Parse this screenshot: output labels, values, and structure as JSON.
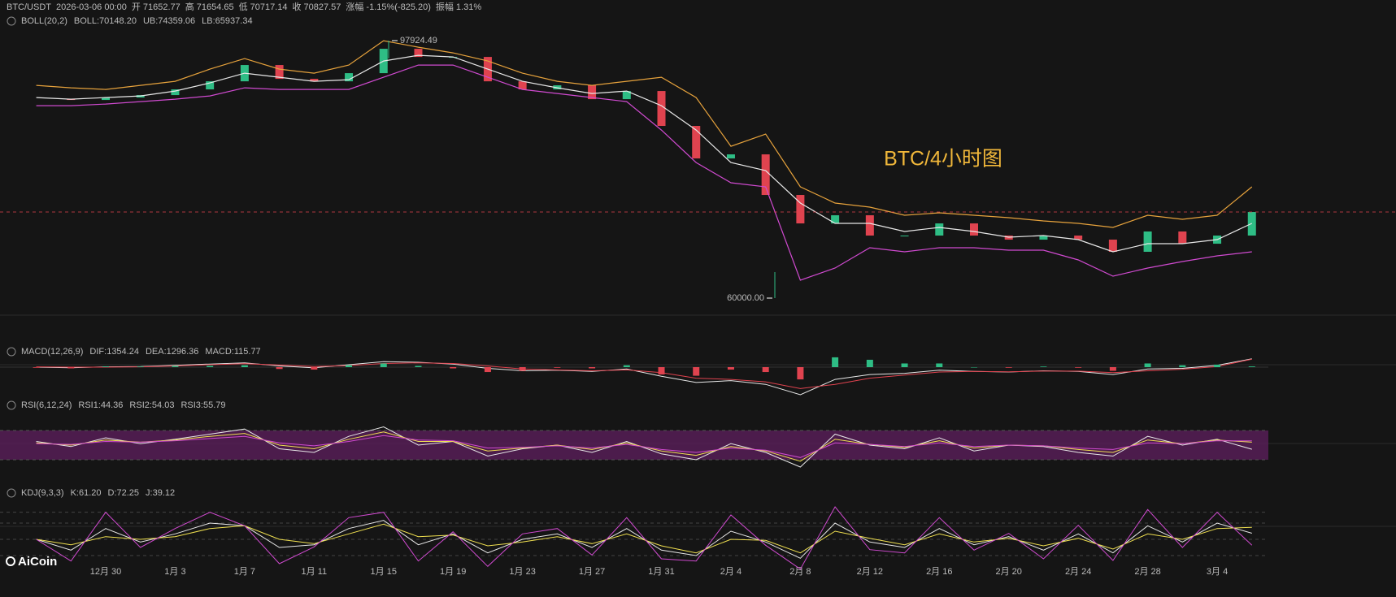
{
  "chart_data": [
    {
      "type": "candlestick",
      "header": {
        "symbol": "BTC/USDT",
        "time": "2026-03-06 00:00",
        "fields": [
          {
            "label": "开",
            "value": "71652.77"
          },
          {
            "label": "高",
            "value": "71654.65"
          },
          {
            "label": "低",
            "value": "70717.14"
          },
          {
            "label": "收",
            "value": "70827.57"
          },
          {
            "label": "涨幅",
            "value": "-1.15%(-825.20)"
          },
          {
            "label": "振幅",
            "value": "1.31%"
          }
        ]
      },
      "indicator": "BOLL(20,2)",
      "annotation": "BTC/4小时图",
      "high": 97924.49,
      "low": {
        "value": 60000,
        "label": "60000.00"
      },
      "categories": [
        null,
        null,
        "12月 30",
        null,
        "1月 3",
        null,
        "1月 7",
        null,
        "1月 11",
        null,
        "1月 15",
        null,
        "1月 19",
        null,
        "1月 23",
        null,
        "1月 27",
        null,
        "1月 31",
        null,
        "2月 4",
        null,
        "2月 8",
        null,
        "2月 12",
        null,
        "2月 16",
        null,
        "2月 20",
        null,
        "2月 24",
        null,
        "2月 28",
        null,
        "3月 4",
        null
      ],
      "values": [
        89302,
        89182,
        89540,
        89900,
        90740,
        91930,
        94330,
        92290,
        91930,
        93130,
        96720,
        95520,
        95520,
        91930,
        90740,
        91340,
        89300,
        90500,
        85360,
        80570,
        81170,
        75190,
        71000,
        72200,
        69210,
        69210,
        71000,
        69210,
        68610,
        69210,
        68610,
        66820,
        69810,
        68010,
        69210,
        72680
      ],
      "up_color": "#2ebd85",
      "down_color": "#e0434f",
      "series": [
        {
          "name": "BOLL:70148.20",
          "color": "#e8e8e8",
          "values": [
            89541,
            89302,
            89541,
            89780,
            90498,
            91694,
            93129,
            92531,
            91933,
            92172,
            94923,
            95760,
            95521,
            93727,
            91933,
            90976,
            90139,
            90498,
            88345,
            84757,
            79973,
            78777,
            73993,
            71003,
            71003,
            69807,
            70405,
            69807,
            68970,
            69209,
            68611,
            66817,
            68013,
            68013,
            68611,
            71003
          ]
        },
        {
          "name": "UB:74359.06",
          "color": "#e6a23c",
          "values": [
            91335,
            90976,
            90737,
            91335,
            91933,
            93727,
            95282,
            93727,
            93129,
            94325,
            97913,
            96956,
            96119,
            94923,
            93129,
            91933,
            91335,
            91933,
            92531,
            89541,
            82365,
            84159,
            76385,
            73993,
            73395,
            72199,
            72558,
            72199,
            71840,
            71362,
            71003,
            70405,
            72199,
            71601,
            72199,
            76385
          ]
        },
        {
          "name": "LB:65937.34",
          "color": "#d04ad0",
          "values": [
            88345,
            88345,
            88584,
            88943,
            89302,
            89780,
            90976,
            90737,
            90737,
            90737,
            92531,
            94325,
            94325,
            92531,
            90737,
            90139,
            89541,
            88943,
            84757,
            79973,
            76983,
            76385,
            62631,
            64425,
            67415,
            66817,
            67415,
            67415,
            67056,
            67056,
            65621,
            63229,
            64425,
            65382,
            66219,
            66817
          ]
        }
      ]
    },
    {
      "type": "macd",
      "indicator": "MACD(12,26,9)",
      "series": [
        {
          "name": "DIF:1354.24",
          "color": "#e8e8e8",
          "values": [
            0,
            -100,
            50,
            100,
            300,
            500,
            700,
            200,
            -100,
            400,
            900,
            800,
            500,
            -200,
            -600,
            -500,
            -700,
            -300,
            -1500,
            -2500,
            -2200,
            -2800,
            -4500,
            -2000,
            -1200,
            -1000,
            -500,
            -700,
            -800,
            -600,
            -700,
            -1200,
            -300,
            -200,
            300,
            1354.24
          ]
        },
        {
          "name": "DEA:1296.36",
          "color": "#e0434f",
          "values": [
            50,
            0,
            0,
            50,
            200,
            400,
            550,
            350,
            100,
            250,
            600,
            700,
            600,
            200,
            -300,
            -450,
            -600,
            -450,
            -900,
            -1800,
            -2000,
            -2400,
            -3500,
            -2800,
            -1800,
            -1300,
            -800,
            -700,
            -750,
            -650,
            -650,
            -900,
            -600,
            -350,
            100,
            1296.36
          ]
        },
        {
          "name": "MACD:115.77",
          "color": "#2ebd85",
          "down_color": "#e0434f",
          "values": [
            -100,
            -200,
            100,
            100,
            200,
            200,
            300,
            -300,
            -400,
            300,
            600,
            200,
            -200,
            -800,
            -600,
            -100,
            -200,
            300,
            -1200,
            -1400,
            -400,
            -800,
            -2000,
            1600,
            1200,
            600,
            600,
            0,
            -100,
            100,
            -100,
            -600,
            600,
            300,
            400,
            115.77
          ]
        }
      ]
    },
    {
      "type": "rsi",
      "indicator": "RSI(6,12,24)",
      "levels": [
        30,
        70
      ],
      "band_color": "#5a1e5a",
      "series": [
        {
          "name": "RSI1:44.36",
          "color": "#e8e8e8",
          "values": [
            55,
            48,
            60,
            52,
            58,
            65,
            72,
            45,
            40,
            62,
            75,
            50,
            55,
            35,
            45,
            50,
            40,
            55,
            38,
            30,
            52,
            40,
            20,
            65,
            50,
            45,
            60,
            42,
            50,
            48,
            40,
            35,
            62,
            50,
            58,
            44.36
          ]
        },
        {
          "name": "RSI2:54.03",
          "color": "#f0e050",
          "values": [
            53,
            50,
            57,
            54,
            57,
            62,
            66,
            50,
            45,
            58,
            68,
            55,
            55,
            42,
            46,
            50,
            44,
            53,
            42,
            36,
            48,
            42,
            28,
            58,
            51,
            47,
            56,
            46,
            50,
            49,
            44,
            40,
            57,
            52,
            57,
            54.03
          ]
        },
        {
          "name": "RSI3:55.79",
          "color": "#d04ad0",
          "values": [
            52,
            51,
            55,
            54,
            56,
            59,
            62,
            53,
            49,
            55,
            63,
            57,
            56,
            46,
            47,
            49,
            46,
            51,
            44,
            40,
            46,
            43,
            33,
            53,
            51,
            48,
            53,
            48,
            50,
            49,
            46,
            44,
            53,
            52,
            56,
            55.79
          ]
        }
      ]
    },
    {
      "type": "kdj",
      "indicator": "KDJ(9,3,3)",
      "levels": [
        20,
        50,
        80,
        100
      ],
      "series": [
        {
          "name": "K:61.20",
          "color": "#e8e8e8",
          "values": [
            50,
            30,
            70,
            45,
            60,
            80,
            75,
            35,
            40,
            70,
            85,
            40,
            60,
            25,
            50,
            60,
            35,
            70,
            30,
            20,
            65,
            45,
            15,
            80,
            45,
            35,
            70,
            40,
            55,
            30,
            60,
            25,
            75,
            45,
            80,
            61.2
          ]
        },
        {
          "name": "D:72.25",
          "color": "#f0e050",
          "values": [
            50,
            40,
            55,
            50,
            55,
            70,
            75,
            50,
            42,
            60,
            78,
            55,
            58,
            38,
            45,
            55,
            42,
            60,
            38,
            25,
            50,
            48,
            25,
            65,
            52,
            40,
            60,
            45,
            52,
            38,
            52,
            32,
            60,
            50,
            70,
            72.25
          ]
        },
        {
          "name": "J:39.12",
          "color": "#d04ad0",
          "values": [
            50,
            10,
            100,
            35,
            70,
            100,
            75,
            5,
            36,
            90,
            100,
            10,
            64,
            0,
            60,
            70,
            21,
            90,
            14,
            10,
            95,
            39,
            -5,
            110,
            31,
            25,
            90,
            30,
            61,
            14,
            76,
            11,
            105,
            35,
            100,
            39.12
          ]
        }
      ]
    }
  ],
  "logo": "AiCoin"
}
